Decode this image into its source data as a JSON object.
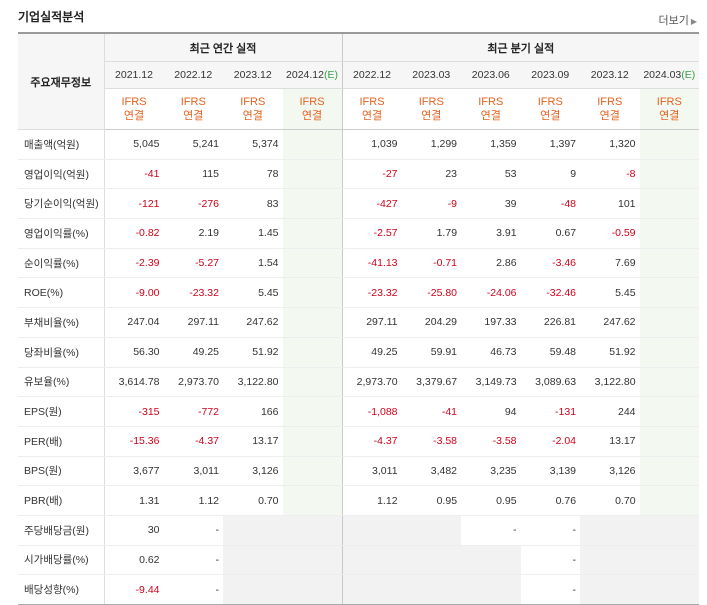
{
  "header": {
    "title": "기업실적분석",
    "more_label": "더보기",
    "more_icon": "chevron-right-icon"
  },
  "colors": {
    "negative": "#d0021b",
    "ifrs": "#e5611e",
    "estimate": "#38a045"
  },
  "table": {
    "row_header": "주요재무정보",
    "groups": {
      "annual": "최근 연간 실적",
      "quarter": "최근 분기 실적"
    },
    "periods": [
      "2021.12",
      "2022.12",
      "2023.12",
      "2024.12",
      "2022.12",
      "2023.03",
      "2023.06",
      "2023.09",
      "2023.12",
      "2024.03"
    ],
    "estimate_mark": "(E)",
    "ifrs_label": "IFRS",
    "ifrs_sub": "연결",
    "rows": [
      {
        "label": "매출액(억원)",
        "values": [
          "5,045",
          "5,241",
          "5,374",
          "",
          "1,039",
          "1,299",
          "1,359",
          "1,397",
          "1,320",
          ""
        ]
      },
      {
        "label": "영업이익(억원)",
        "values": [
          "-41",
          "115",
          "78",
          "",
          "-27",
          "23",
          "53",
          "9",
          "-8",
          ""
        ]
      },
      {
        "label": "당기순이익(억원)",
        "values": [
          "-121",
          "-276",
          "83",
          "",
          "-427",
          "-9",
          "39",
          "-48",
          "101",
          ""
        ]
      },
      {
        "label": "영업이익률(%)",
        "values": [
          "-0.82",
          "2.19",
          "1.45",
          "",
          "-2.57",
          "1.79",
          "3.91",
          "0.67",
          "-0.59",
          ""
        ]
      },
      {
        "label": "순이익률(%)",
        "values": [
          "-2.39",
          "-5.27",
          "1.54",
          "",
          "-41.13",
          "-0.71",
          "2.86",
          "-3.46",
          "7.69",
          ""
        ]
      },
      {
        "label": "ROE(%)",
        "values": [
          "-9.00",
          "-23.32",
          "5.45",
          "",
          "-23.32",
          "-25.80",
          "-24.06",
          "-32.46",
          "5.45",
          ""
        ]
      },
      {
        "label": "부채비율(%)",
        "values": [
          "247.04",
          "297.11",
          "247.62",
          "",
          "297.11",
          "204.29",
          "197.33",
          "226.81",
          "247.62",
          ""
        ]
      },
      {
        "label": "당좌비율(%)",
        "values": [
          "56.30",
          "49.25",
          "51.92",
          "",
          "49.25",
          "59.91",
          "46.73",
          "59.48",
          "51.92",
          ""
        ]
      },
      {
        "label": "유보율(%)",
        "values": [
          "3,614.78",
          "2,973.70",
          "3,122.80",
          "",
          "2,973.70",
          "3,379.67",
          "3,149.73",
          "3,089.63",
          "3,122.80",
          ""
        ]
      },
      {
        "label": "EPS(원)",
        "values": [
          "-315",
          "-772",
          "166",
          "",
          "-1,088",
          "-41",
          "94",
          "-131",
          "244",
          ""
        ]
      },
      {
        "label": "PER(배)",
        "values": [
          "-15.36",
          "-4.37",
          "13.17",
          "",
          "-4.37",
          "-3.58",
          "-3.58",
          "-2.04",
          "13.17",
          ""
        ]
      },
      {
        "label": "BPS(원)",
        "values": [
          "3,677",
          "3,011",
          "3,126",
          "",
          "3,011",
          "3,482",
          "3,235",
          "3,139",
          "3,126",
          ""
        ]
      },
      {
        "label": "PBR(배)",
        "values": [
          "1.31",
          "1.12",
          "0.70",
          "",
          "1.12",
          "0.95",
          "0.95",
          "0.76",
          "0.70",
          ""
        ]
      },
      {
        "label": "주당배당금(원)",
        "values": [
          "30",
          "-",
          null,
          null,
          null,
          null,
          "-",
          "-",
          null,
          null
        ]
      },
      {
        "label": "시가배당률(%)",
        "values": [
          "0.62",
          "-",
          null,
          null,
          null,
          null,
          null,
          "-",
          null,
          null
        ]
      },
      {
        "label": "배당성향(%)",
        "values": [
          "-9.44",
          "-",
          null,
          null,
          null,
          null,
          null,
          "-",
          null,
          null
        ]
      }
    ]
  }
}
